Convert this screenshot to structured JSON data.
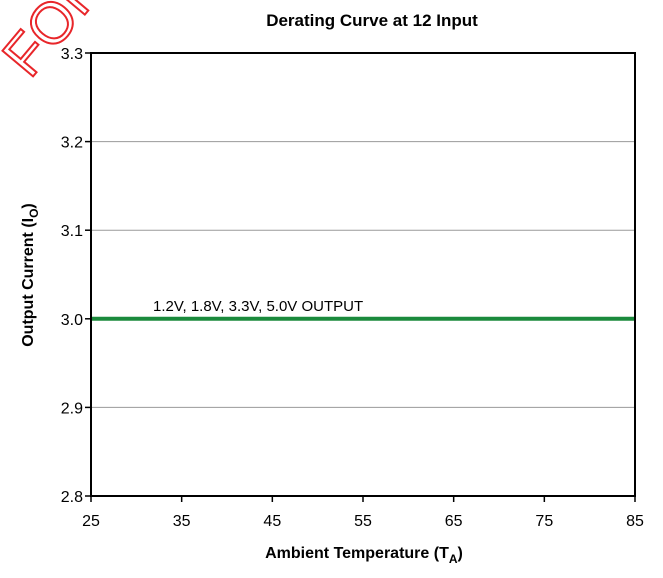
{
  "chart_data": {
    "type": "line",
    "title": "Derating Curve at 12 Input",
    "xlabel": "Ambient Temperature (T",
    "xlabel_sub": "A",
    "xlabel_end": ")",
    "ylabel": "Output Current (I",
    "ylabel_sub": "O",
    "ylabel_end": ")",
    "xlim": [
      25,
      85
    ],
    "ylim": [
      2.8,
      3.3
    ],
    "x_ticks": [
      25,
      35,
      45,
      55,
      65,
      75,
      85
    ],
    "y_ticks": [
      2.8,
      2.9,
      3.0,
      3.1,
      3.2,
      3.3
    ],
    "y_tick_labels": [
      "2.8",
      "2.9",
      "3.0",
      "3.1",
      "3.2",
      "3.3"
    ],
    "grid": true,
    "series": [
      {
        "name": "1.2V, 1.8V, 3.3V, 5.0V OUTPUT",
        "color": "#1a8a3c",
        "x": [
          25,
          85
        ],
        "y": [
          3.0,
          3.0
        ]
      }
    ]
  },
  "watermark_text": "FOR"
}
